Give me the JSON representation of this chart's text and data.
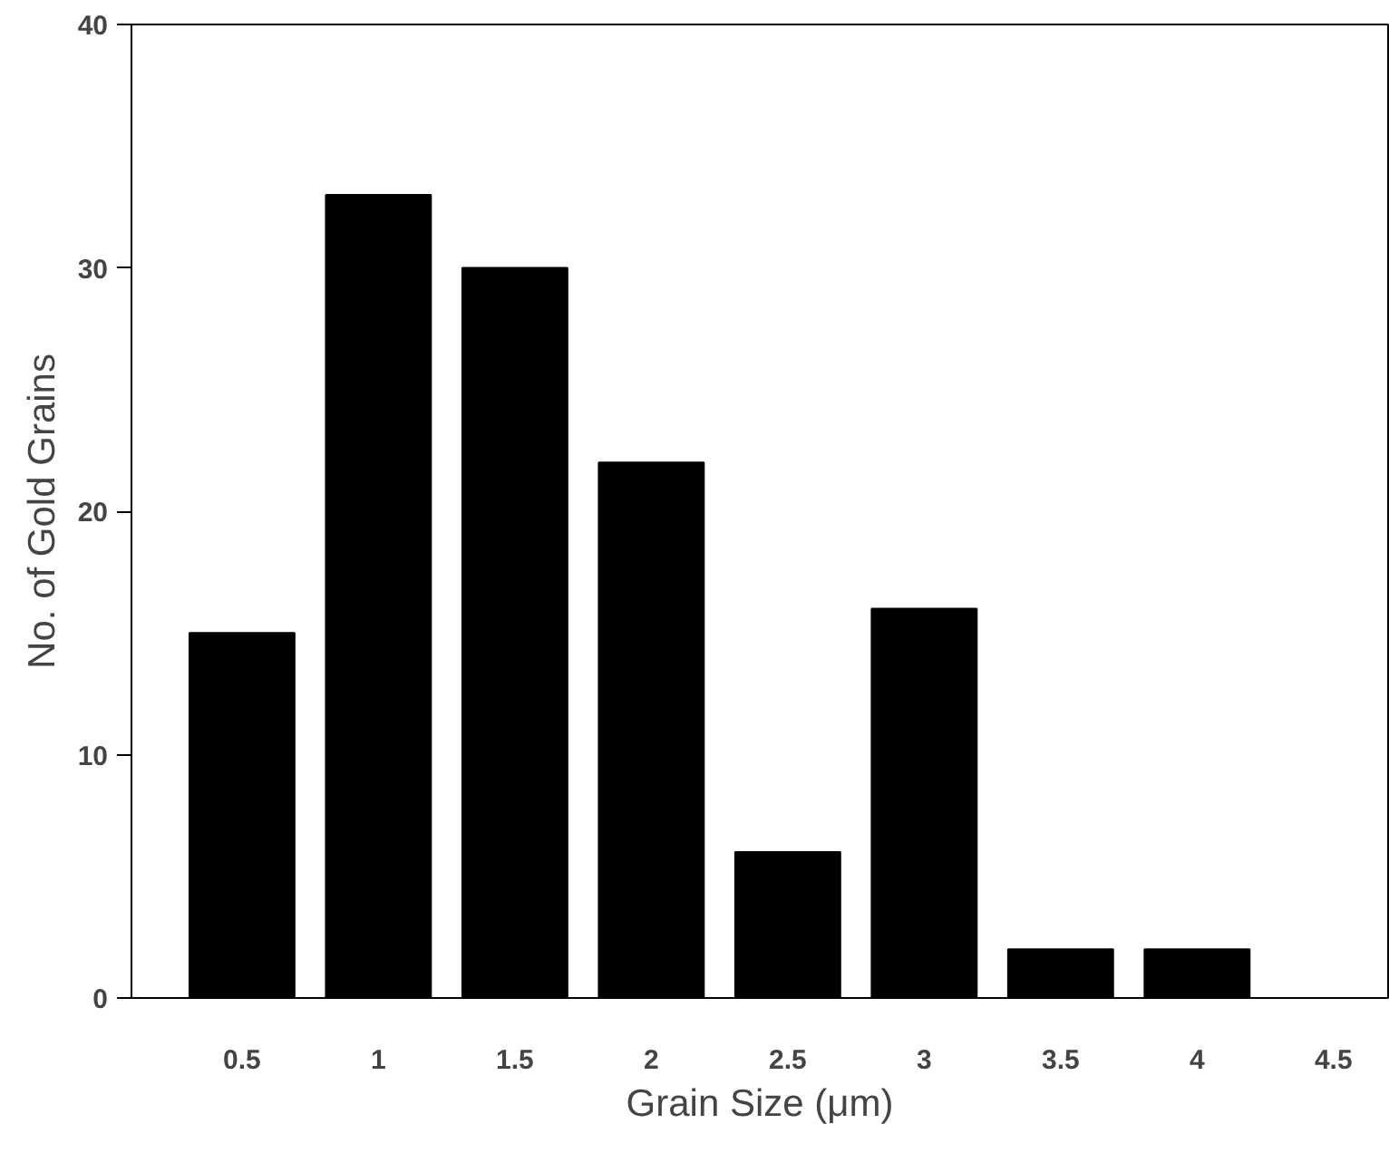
{
  "chart_data": {
    "type": "bar",
    "xlabel": "Grain Size (μm)",
    "ylabel": "No. of Gold Grains",
    "categories": [
      "0.5",
      "1",
      "1.5",
      "2",
      "2.5",
      "3",
      "3.5",
      "4",
      "4.5"
    ],
    "values": [
      15,
      33,
      30,
      22,
      6,
      16,
      2,
      2,
      0
    ],
    "color": "#000000",
    "ylim": [
      0,
      40
    ],
    "yticks": [
      0,
      10,
      20,
      30,
      40
    ],
    "grid": false
  }
}
